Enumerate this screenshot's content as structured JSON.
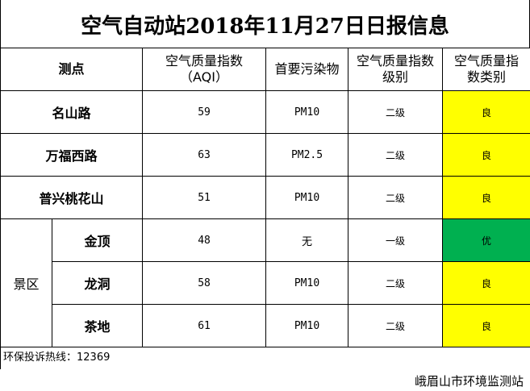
{
  "title": "空气自动站2018年11月27日日报信息",
  "header": {
    "station": "测点",
    "aqi": [
      "空气质量指数",
      "（AQI）"
    ],
    "pollutant": "首要污染物",
    "level": [
      "空气质量指数",
      "级别"
    ],
    "category": [
      "空气质量指",
      "数类别"
    ]
  },
  "group_label": "景区",
  "rows": [
    {
      "name": "名山路",
      "aqi": "59",
      "pollutant": "PM10",
      "level": "二级",
      "category": "良",
      "color": "#ffff00"
    },
    {
      "name": "万福西路",
      "aqi": "63",
      "pollutant": "PM2.5",
      "level": "二级",
      "category": "良",
      "color": "#ffff00"
    },
    {
      "name": "普兴桃花山",
      "aqi": "51",
      "pollutant": "PM10",
      "level": "二级",
      "category": "良",
      "color": "#ffff00"
    },
    {
      "name": "金顶",
      "aqi": "48",
      "pollutant": "无",
      "level": "一级",
      "category": "优",
      "color": "#00b050"
    },
    {
      "name": "龙洞",
      "aqi": "58",
      "pollutant": "PM10",
      "level": "二级",
      "category": "良",
      "color": "#ffff00"
    },
    {
      "name": "茶地",
      "aqi": "61",
      "pollutant": "PM10",
      "level": "二级",
      "category": "良",
      "color": "#ffff00"
    }
  ],
  "hotline": "环保投诉热线：12369",
  "organization": "峨眉山市环境监测站"
}
